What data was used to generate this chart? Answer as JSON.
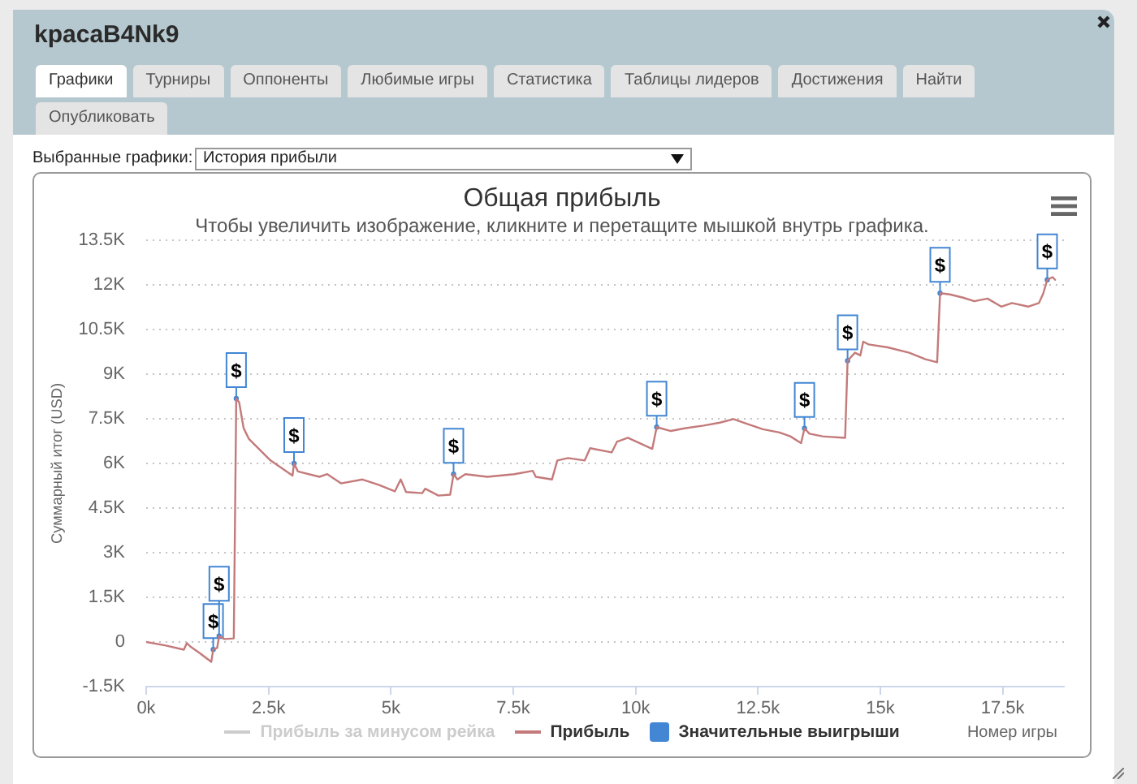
{
  "chart_data": {
    "type": "line",
    "title": "Общая прибыль",
    "subtitle": "Чтобы увеличить изображение, кликните и перетащите мышкой внутрь графика.",
    "xlabel": "Номер игры",
    "ylabel": "Суммарный итог (USD)",
    "annotations": [
      "kpacaB4Nk9",
      "Графики",
      "Турниры",
      "Оппоненты",
      "Любимые игры",
      "Статистика",
      "Таблицы лидеров",
      "Достижения",
      "Найти",
      "Опубликовать",
      "Выбранные графики:",
      "История прибыли"
    ],
    "xlim": [
      0,
      18750
    ],
    "ylim": [
      -1500,
      13500
    ],
    "xticks": [
      {
        "value": 0,
        "label": "0k"
      },
      {
        "value": 2500,
        "label": "2.5k"
      },
      {
        "value": 5000,
        "label": "5k"
      },
      {
        "value": 7500,
        "label": "7.5k"
      },
      {
        "value": 10000,
        "label": "10k"
      },
      {
        "value": 12500,
        "label": "12.5k"
      },
      {
        "value": 15000,
        "label": "15k"
      },
      {
        "value": 17500,
        "label": "17.5k"
      }
    ],
    "yticks": [
      {
        "value": -1500,
        "label": "-1.5K"
      },
      0,
      {
        "value": 1500,
        "label": "1.5K"
      },
      {
        "value": 3000,
        "label": "3K"
      },
      {
        "value": 4500,
        "label": "4.5K"
      },
      {
        "value": 6000,
        "label": "6K"
      },
      {
        "value": 7500,
        "label": "7.5K"
      },
      {
        "value": 9000,
        "label": "9K"
      },
      {
        "value": 10500,
        "label": "10.5K"
      },
      {
        "value": 12000,
        "label": "12K"
      },
      {
        "value": 13500,
        "label": "13.5K"
      }
    ],
    "grid": "y",
    "legend": "bottom",
    "series": [
      {
        "name": "Прибыль за минусом рейка",
        "color": "#cccccc"
      },
      {
        "name": "Прибыль",
        "color": "#c47a7a",
        "x": [
          0,
          400,
          770,
          830,
          900,
          1100,
          1330,
          1370,
          1450,
          1490,
          1600,
          1790,
          1840,
          1900,
          1990,
          2100,
          2320,
          2540,
          2870,
          2990,
          3020,
          3100,
          3540,
          3700,
          3980,
          4420,
          4750,
          5080,
          5200,
          5310,
          5640,
          5700,
          5970,
          6210,
          6280,
          6360,
          6520,
          6970,
          7520,
          7900,
          7960,
          8290,
          8400,
          8620,
          8960,
          9070,
          9510,
          9620,
          9840,
          10340,
          10430,
          10720,
          11000,
          11390,
          11720,
          12000,
          12270,
          12600,
          12940,
          13160,
          13380,
          13450,
          13550,
          13820,
          14280,
          14330,
          14480,
          14590,
          14650,
          14760,
          15150,
          15590,
          15920,
          16160,
          16220,
          16420,
          16690,
          16920,
          17190,
          17470,
          17690,
          18020,
          18240,
          18330,
          18410,
          18520,
          18570
        ],
        "values": [
          0,
          -120,
          -260,
          -40,
          -150,
          -380,
          -670,
          -250,
          -200,
          200,
          100,
          120,
          8180,
          8050,
          7190,
          6820,
          6460,
          6100,
          5730,
          5590,
          6000,
          5730,
          5550,
          5640,
          5330,
          5460,
          5280,
          5060,
          5460,
          5040,
          5000,
          5150,
          4920,
          4950,
          5640,
          5460,
          5640,
          5550,
          5640,
          5750,
          5550,
          5460,
          6100,
          6180,
          6100,
          6510,
          6370,
          6730,
          6860,
          6490,
          7220,
          7090,
          7180,
          7270,
          7370,
          7490,
          7330,
          7150,
          7040,
          6910,
          6680,
          7180,
          7000,
          6910,
          6860,
          9450,
          9720,
          9630,
          10090,
          10000,
          9900,
          9720,
          9500,
          9400,
          11720,
          11680,
          11570,
          11450,
          11540,
          11270,
          11390,
          11270,
          11390,
          11720,
          12170,
          12260,
          12170
        ]
      },
      {
        "name": "Значительные выигрыши",
        "type": "scatter",
        "color": "#4286d4",
        "x": [
          1370,
          1490,
          1840,
          3020,
          6280,
          10430,
          13450,
          14330,
          16220,
          18410
        ],
        "values": [
          -250,
          200,
          8180,
          6000,
          5640,
          7220,
          7180,
          9450,
          11720,
          12170
        ],
        "value_labels": [
          "$",
          "$",
          "$",
          "$",
          "$",
          "$",
          "$",
          "$",
          "$",
          "$"
        ]
      }
    ]
  }
}
